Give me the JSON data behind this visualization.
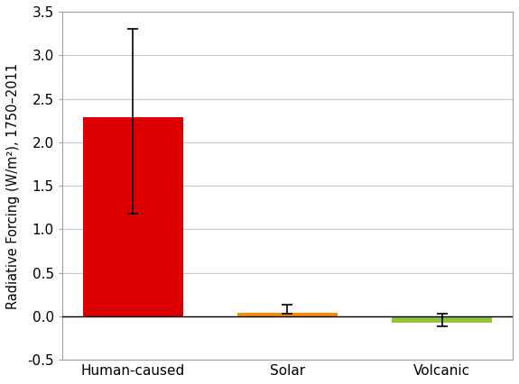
{
  "categories": [
    "Human-caused",
    "Solar",
    "Volcanic"
  ],
  "values": [
    2.29,
    0.04,
    -0.07
  ],
  "bar_colors": [
    "#dd0000",
    "#ff8c00",
    "#92c440"
  ],
  "error_lower": [
    1.11,
    0.01,
    0.04
  ],
  "error_upper": [
    1.01,
    0.09,
    0.1
  ],
  "ylabel": "Radiative Forcing (W/m²), 1750–2011",
  "ylim": [
    -0.5,
    3.5
  ],
  "yticks": [
    -0.5,
    0.0,
    0.5,
    1.0,
    1.5,
    2.0,
    2.5,
    3.0,
    3.5
  ],
  "background_color": "#ffffff",
  "grid_color": "#c8c8c8",
  "bar_width": 0.65,
  "capsize": 4,
  "spine_color": "#a0a0a0"
}
